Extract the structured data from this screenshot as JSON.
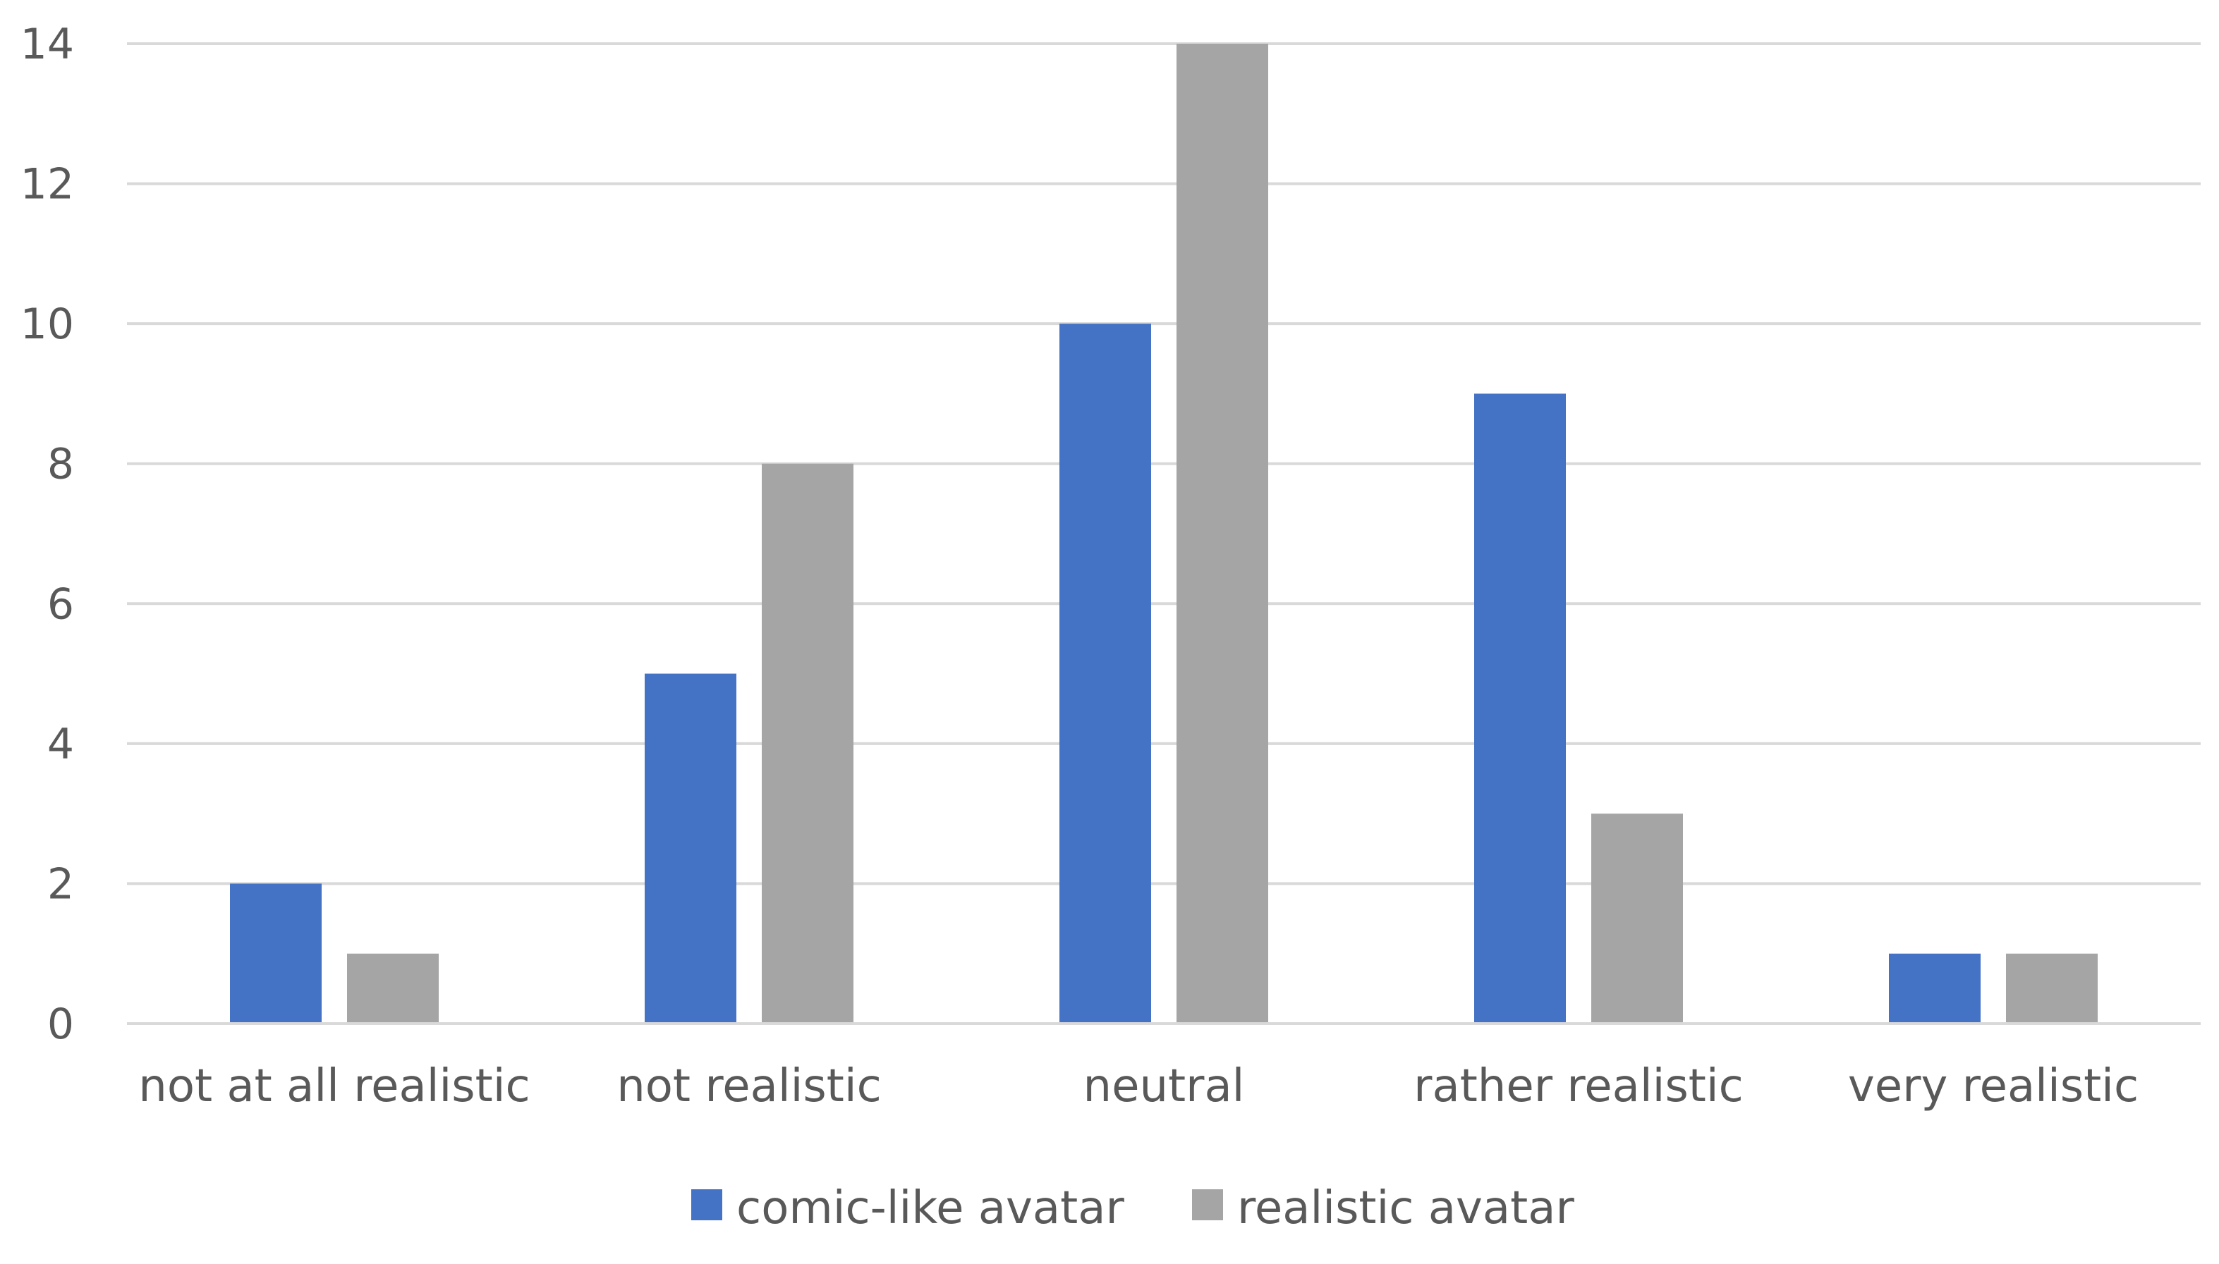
{
  "chart_data": {
    "type": "bar",
    "title": "",
    "xlabel": "",
    "ylabel": "",
    "categories": [
      "not at all realistic",
      "not realistic",
      "neutral",
      "rather realistic",
      "very realistic"
    ],
    "series": [
      {
        "name": "comic-like avatar",
        "values": [
          2,
          5,
          10,
          9,
          1
        ],
        "color": "#4472C4"
      },
      {
        "name": "realistic avatar",
        "values": [
          1,
          8,
          14,
          3,
          1
        ],
        "color": "#A5A5A5"
      }
    ],
    "ylim": [
      0,
      14
    ],
    "yticks": [
      "0",
      "2",
      "4",
      "6",
      "8",
      "10",
      "12",
      "14"
    ],
    "grid": true,
    "legend_position": "bottom"
  }
}
